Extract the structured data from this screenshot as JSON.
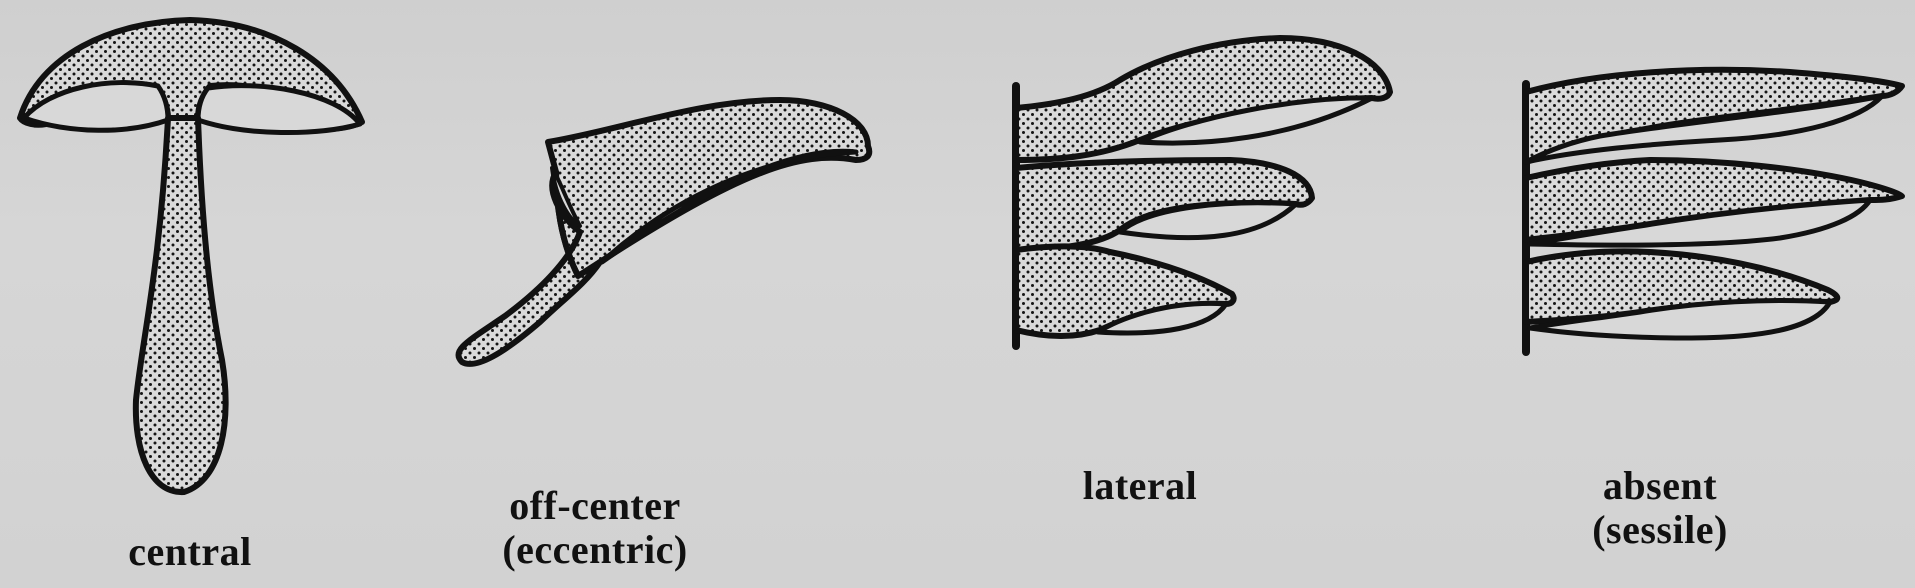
{
  "figure": {
    "central": {
      "label": "central"
    },
    "offcenter": {
      "label_line1": "off-center",
      "label_line2": "(eccentric)"
    },
    "lateral": {
      "label": "lateral"
    },
    "absent": {
      "label_line1": "absent",
      "label_line2": "(sessile)"
    }
  },
  "colors": {
    "background": "#d4d4d4",
    "ink": "#111111",
    "fill": "#d9d9d9"
  }
}
